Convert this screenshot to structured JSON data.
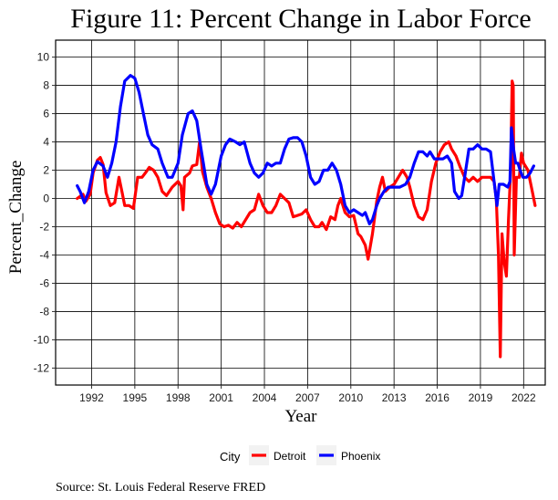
{
  "chart_data": {
    "type": "line",
    "title": "Figure 11: Percent Change in Labor Force",
    "xlabel": "Year",
    "ylabel": "Percent_Change",
    "caption": "Source: St. Louis Federal Reserve FRED",
    "legend_title": "City",
    "legend_position": "bottom",
    "grid": true,
    "xlim": [
      1989.5,
      2023.5
    ],
    "ylim": [
      -13.2,
      11.2
    ],
    "x_ticks": [
      1992,
      1995,
      1998,
      2001,
      2004,
      2007,
      2010,
      2013,
      2016,
      2019,
      2022
    ],
    "y_ticks": [
      -12,
      -10,
      -8,
      -6,
      -4,
      -2,
      0,
      2,
      4,
      6,
      8,
      10
    ],
    "series": [
      {
        "name": "Detroit",
        "color": "#ff0000",
        "points": [
          [
            1991.0,
            0.0
          ],
          [
            1991.4,
            0.3
          ],
          [
            1991.6,
            -0.2
          ],
          [
            1991.9,
            0.3
          ],
          [
            1992.1,
            1.8
          ],
          [
            1992.4,
            2.7
          ],
          [
            1992.6,
            2.9
          ],
          [
            1992.8,
            2.4
          ],
          [
            1993.0,
            0.4
          ],
          [
            1993.3,
            -0.5
          ],
          [
            1993.6,
            -0.3
          ],
          [
            1993.9,
            1.5
          ],
          [
            1994.1,
            0.5
          ],
          [
            1994.3,
            -0.5
          ],
          [
            1994.6,
            -0.5
          ],
          [
            1994.9,
            -0.7
          ],
          [
            1995.2,
            1.5
          ],
          [
            1995.5,
            1.5
          ],
          [
            1995.8,
            1.9
          ],
          [
            1996.0,
            2.2
          ],
          [
            1996.3,
            2.0
          ],
          [
            1996.6,
            1.5
          ],
          [
            1996.9,
            0.5
          ],
          [
            1997.2,
            0.2
          ],
          [
            1997.6,
            0.8
          ],
          [
            1998.0,
            1.2
          ],
          [
            1998.2,
            0.9
          ],
          [
            1998.35,
            -0.8
          ],
          [
            1998.45,
            1.5
          ],
          [
            1998.8,
            1.8
          ],
          [
            1999.0,
            2.3
          ],
          [
            1999.3,
            2.4
          ],
          [
            1999.5,
            4.0
          ],
          [
            1999.7,
            1.9
          ],
          [
            2000.0,
            0.8
          ],
          [
            2000.3,
            0.0
          ],
          [
            2000.6,
            -1.0
          ],
          [
            2000.9,
            -1.8
          ],
          [
            2001.2,
            -2.0
          ],
          [
            2001.5,
            -1.9
          ],
          [
            2001.8,
            -2.1
          ],
          [
            2002.1,
            -1.7
          ],
          [
            2002.4,
            -2.0
          ],
          [
            2002.7,
            -1.5
          ],
          [
            2003.0,
            -1.0
          ],
          [
            2003.3,
            -0.8
          ],
          [
            2003.6,
            0.3
          ],
          [
            2003.9,
            -0.5
          ],
          [
            2004.2,
            -1.0
          ],
          [
            2004.5,
            -1.0
          ],
          [
            2004.8,
            -0.5
          ],
          [
            2005.1,
            0.3
          ],
          [
            2005.4,
            0.0
          ],
          [
            2005.7,
            -0.3
          ],
          [
            2006.0,
            -1.3
          ],
          [
            2006.3,
            -1.2
          ],
          [
            2006.6,
            -1.1
          ],
          [
            2006.9,
            -0.8
          ],
          [
            2007.2,
            -1.5
          ],
          [
            2007.5,
            -2.0
          ],
          [
            2007.8,
            -2.0
          ],
          [
            2008.0,
            -1.7
          ],
          [
            2008.3,
            -2.2
          ],
          [
            2008.6,
            -1.3
          ],
          [
            2008.9,
            -1.5
          ],
          [
            2009.1,
            -0.5
          ],
          [
            2009.3,
            0.0
          ],
          [
            2009.6,
            -1.0
          ],
          [
            2009.9,
            -1.3
          ],
          [
            2010.2,
            -1.2
          ],
          [
            2010.5,
            -2.5
          ],
          [
            2010.7,
            -2.7
          ],
          [
            2011.0,
            -3.3
          ],
          [
            2011.2,
            -4.3
          ],
          [
            2011.5,
            -2.5
          ],
          [
            2011.8,
            -0.2
          ],
          [
            2012.0,
            0.8
          ],
          [
            2012.2,
            1.5
          ],
          [
            2012.4,
            0.5
          ],
          [
            2012.7,
            0.8
          ],
          [
            2013.0,
            1.0
          ],
          [
            2013.3,
            1.5
          ],
          [
            2013.6,
            2.0
          ],
          [
            2013.9,
            1.5
          ],
          [
            2014.1,
            0.8
          ],
          [
            2014.4,
            -0.5
          ],
          [
            2014.7,
            -1.3
          ],
          [
            2015.0,
            -1.5
          ],
          [
            2015.3,
            -0.8
          ],
          [
            2015.6,
            1.2
          ],
          [
            2015.9,
            2.5
          ],
          [
            2016.2,
            3.3
          ],
          [
            2016.5,
            3.8
          ],
          [
            2016.8,
            4.0
          ],
          [
            2017.0,
            3.5
          ],
          [
            2017.3,
            3.0
          ],
          [
            2017.6,
            2.2
          ],
          [
            2017.9,
            1.5
          ],
          [
            2018.2,
            1.2
          ],
          [
            2018.5,
            1.5
          ],
          [
            2018.8,
            1.2
          ],
          [
            2019.1,
            1.5
          ],
          [
            2019.4,
            1.5
          ],
          [
            2019.7,
            1.5
          ],
          [
            2019.95,
            1.2
          ],
          [
            2020.1,
            0.0
          ],
          [
            2020.25,
            -4.0
          ],
          [
            2020.38,
            -11.2
          ],
          [
            2020.5,
            -2.5
          ],
          [
            2020.65,
            -4.5
          ],
          [
            2020.8,
            -5.5
          ],
          [
            2020.95,
            -1.5
          ],
          [
            2021.1,
            2.0
          ],
          [
            2021.2,
            8.3
          ],
          [
            2021.28,
            8.0
          ],
          [
            2021.35,
            -4.0
          ],
          [
            2021.5,
            1.5
          ],
          [
            2021.7,
            1.5
          ],
          [
            2021.85,
            3.2
          ],
          [
            2022.0,
            2.5
          ],
          [
            2022.3,
            2.0
          ],
          [
            2022.6,
            0.5
          ],
          [
            2022.8,
            -0.5
          ]
        ]
      },
      {
        "name": "Phoenix",
        "color": "#0000ff",
        "points": [
          [
            1991.0,
            0.9
          ],
          [
            1991.2,
            0.5
          ],
          [
            1991.5,
            -0.3
          ],
          [
            1991.8,
            0.5
          ],
          [
            1992.1,
            2.0
          ],
          [
            1992.4,
            2.6
          ],
          [
            1992.8,
            2.3
          ],
          [
            1993.1,
            1.5
          ],
          [
            1993.4,
            2.5
          ],
          [
            1993.7,
            4.0
          ],
          [
            1994.0,
            6.5
          ],
          [
            1994.3,
            8.3
          ],
          [
            1994.7,
            8.7
          ],
          [
            1995.0,
            8.5
          ],
          [
            1995.3,
            7.5
          ],
          [
            1995.6,
            6.0
          ],
          [
            1995.9,
            4.5
          ],
          [
            1996.2,
            3.8
          ],
          [
            1996.6,
            3.5
          ],
          [
            1996.9,
            2.5
          ],
          [
            1997.3,
            1.5
          ],
          [
            1997.6,
            1.5
          ],
          [
            1998.0,
            2.5
          ],
          [
            1998.3,
            4.5
          ],
          [
            1998.7,
            6.0
          ],
          [
            1999.0,
            6.2
          ],
          [
            1999.3,
            5.5
          ],
          [
            1999.6,
            3.5
          ],
          [
            2000.0,
            1.0
          ],
          [
            2000.3,
            0.3
          ],
          [
            2000.6,
            1.0
          ],
          [
            2001.0,
            3.0
          ],
          [
            2001.3,
            3.8
          ],
          [
            2001.6,
            4.2
          ],
          [
            2002.0,
            4.0
          ],
          [
            2002.3,
            3.8
          ],
          [
            2002.6,
            4.0
          ],
          [
            2003.0,
            2.5
          ],
          [
            2003.3,
            1.8
          ],
          [
            2003.6,
            1.5
          ],
          [
            2003.9,
            1.8
          ],
          [
            2004.2,
            2.5
          ],
          [
            2004.5,
            2.3
          ],
          [
            2004.8,
            2.5
          ],
          [
            2005.1,
            2.5
          ],
          [
            2005.4,
            3.5
          ],
          [
            2005.7,
            4.2
          ],
          [
            2006.0,
            4.3
          ],
          [
            2006.3,
            4.3
          ],
          [
            2006.6,
            4.0
          ],
          [
            2006.9,
            3.0
          ],
          [
            2007.2,
            1.5
          ],
          [
            2007.5,
            1.0
          ],
          [
            2007.8,
            1.2
          ],
          [
            2008.1,
            2.0
          ],
          [
            2008.4,
            2.0
          ],
          [
            2008.7,
            2.5
          ],
          [
            2009.0,
            2.0
          ],
          [
            2009.3,
            1.0
          ],
          [
            2009.6,
            -0.5
          ],
          [
            2009.9,
            -1.0
          ],
          [
            2010.2,
            -0.8
          ],
          [
            2010.5,
            -1.0
          ],
          [
            2010.8,
            -1.2
          ],
          [
            2011.0,
            -1.0
          ],
          [
            2011.3,
            -1.8
          ],
          [
            2011.5,
            -1.5
          ],
          [
            2011.8,
            -0.5
          ],
          [
            2012.0,
            0.0
          ],
          [
            2012.3,
            0.5
          ],
          [
            2012.6,
            0.8
          ],
          [
            2013.0,
            0.8
          ],
          [
            2013.4,
            0.8
          ],
          [
            2013.8,
            1.0
          ],
          [
            2014.1,
            1.5
          ],
          [
            2014.4,
            2.5
          ],
          [
            2014.7,
            3.3
          ],
          [
            2015.0,
            3.3
          ],
          [
            2015.3,
            3.0
          ],
          [
            2015.5,
            3.3
          ],
          [
            2015.8,
            2.8
          ],
          [
            2016.1,
            2.8
          ],
          [
            2016.4,
            2.8
          ],
          [
            2016.7,
            3.0
          ],
          [
            2017.0,
            2.5
          ],
          [
            2017.2,
            0.5
          ],
          [
            2017.5,
            0.0
          ],
          [
            2017.7,
            0.2
          ],
          [
            2017.9,
            1.5
          ],
          [
            2018.2,
            3.5
          ],
          [
            2018.5,
            3.5
          ],
          [
            2018.8,
            3.8
          ],
          [
            2019.1,
            3.5
          ],
          [
            2019.4,
            3.5
          ],
          [
            2019.7,
            3.3
          ],
          [
            2019.95,
            1.2
          ],
          [
            2020.15,
            -0.5
          ],
          [
            2020.3,
            1.0
          ],
          [
            2020.6,
            1.0
          ],
          [
            2020.9,
            0.8
          ],
          [
            2021.05,
            1.2
          ],
          [
            2021.15,
            5.0
          ],
          [
            2021.3,
            3.5
          ],
          [
            2021.45,
            2.5
          ],
          [
            2021.6,
            2.5
          ],
          [
            2021.75,
            2.0
          ],
          [
            2021.95,
            1.5
          ],
          [
            2022.2,
            1.5
          ],
          [
            2022.45,
            1.8
          ],
          [
            2022.7,
            2.3
          ]
        ]
      }
    ]
  }
}
